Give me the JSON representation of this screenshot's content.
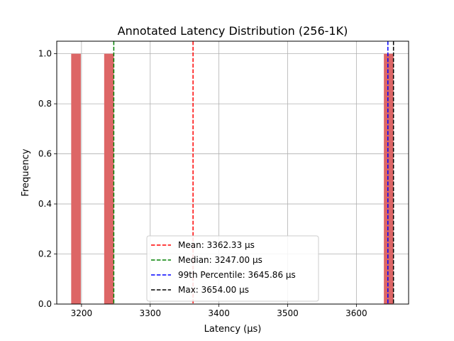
{
  "chart_data": {
    "type": "bar",
    "title": "Annotated Latency Distribution (256-1K)",
    "xlabel": "Latency (µs)",
    "ylabel": "Frequency",
    "xlim": [
      3164,
      3676
    ],
    "ylim": [
      0,
      1.05
    ],
    "xticks": [
      3200,
      3300,
      3400,
      3500,
      3600
    ],
    "yticks": [
      0.0,
      0.2,
      0.4,
      0.6,
      0.8,
      1.0
    ],
    "xtick_labels": [
      "3200",
      "3300",
      "3400",
      "3500",
      "3600"
    ],
    "ytick_labels": [
      "0.0",
      "0.2",
      "0.4",
      "0.6",
      "0.8",
      "1.0"
    ],
    "grid": true,
    "legend_position": "lower center",
    "bar_color": "#dd6666",
    "bins": [
      {
        "start": 3185,
        "end": 3199,
        "count": 1
      },
      {
        "start": 3233,
        "end": 3247,
        "count": 1
      },
      {
        "start": 3640,
        "end": 3654,
        "count": 1
      }
    ],
    "annotations": [
      {
        "label": "Mean: 3362.33 µs",
        "x": 3362.33,
        "color": "#ff0000"
      },
      {
        "label": "Median: 3247.00 µs",
        "x": 3247.0,
        "color": "#008000"
      },
      {
        "label": "99th Percentile: 3645.86 µs",
        "x": 3645.86,
        "color": "#0000ff"
      },
      {
        "label": "Max: 3654.00 µs",
        "x": 3654.0,
        "color": "#000000"
      }
    ]
  }
}
